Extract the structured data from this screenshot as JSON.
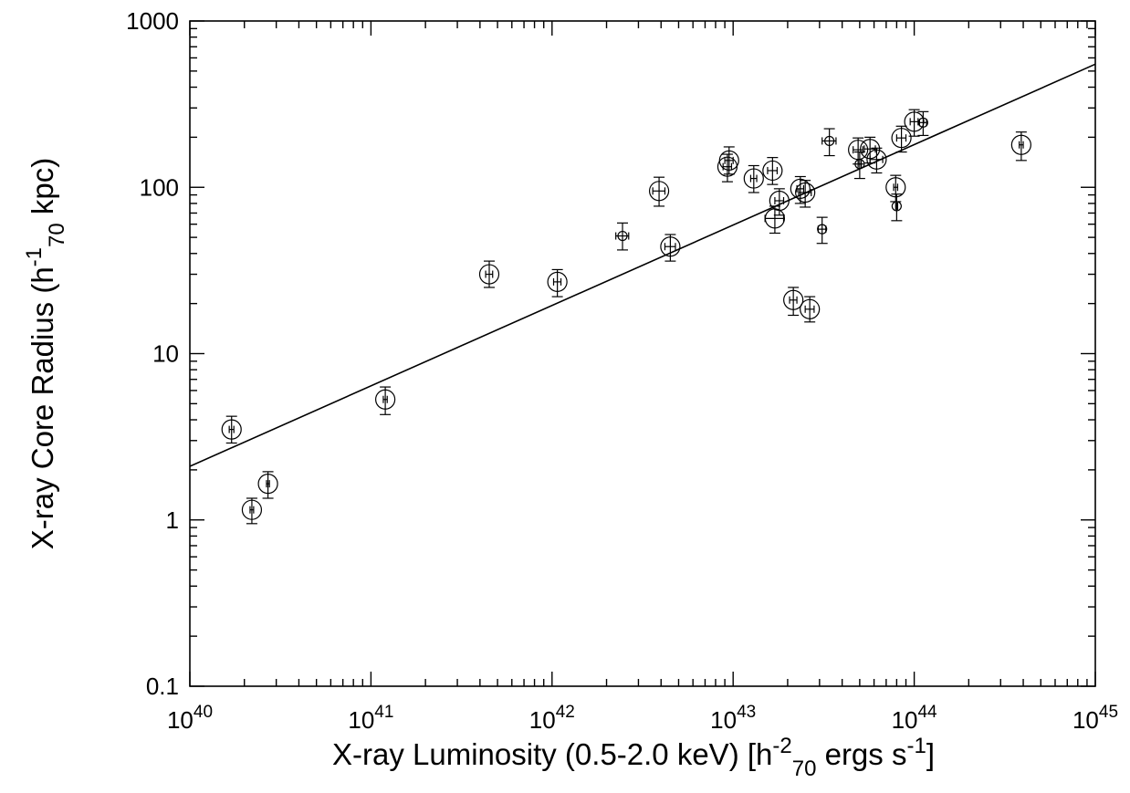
{
  "chart_data": {
    "type": "scatter",
    "xlabel": {
      "parts": [
        {
          "t": "X-ray Luminosity (0.5-2.0 keV) [h"
        },
        {
          "t": "-2",
          "sup": true
        },
        {
          "t": "70",
          "sub": true
        },
        {
          "t": " ergs s"
        },
        {
          "t": "-1",
          "sup": true
        },
        {
          "t": "]"
        }
      ]
    },
    "ylabel": {
      "parts": [
        {
          "t": "X-ray Core Radius (h"
        },
        {
          "t": "-1",
          "sup": true
        },
        {
          "t": "70",
          "sub": true
        },
        {
          "t": " kpc)"
        }
      ]
    },
    "x_scale": "log",
    "y_scale": "log",
    "xlim": [
      1e+40,
      1e+45
    ],
    "ylim": [
      0.1,
      1000
    ],
    "x_ticks": [
      {
        "value": 1e+40,
        "base": "10",
        "exp": "40"
      },
      {
        "value": 1e+41,
        "base": "10",
        "exp": "41"
      },
      {
        "value": 1e+42,
        "base": "10",
        "exp": "42"
      },
      {
        "value": 1e+43,
        "base": "10",
        "exp": "43"
      },
      {
        "value": 1e+44,
        "base": "10",
        "exp": "44"
      },
      {
        "value": 1e+45,
        "base": "10",
        "exp": "45"
      }
    ],
    "y_ticks": [
      {
        "value": 0.1,
        "label": "0.1"
      },
      {
        "value": 1,
        "label": "1"
      },
      {
        "value": 10,
        "label": "10"
      },
      {
        "value": 100,
        "label": "100"
      },
      {
        "value": 1000,
        "label": "1000"
      }
    ],
    "grid": false,
    "legend": "none",
    "marker_color": "#000000",
    "fit_line": {
      "x": [
        1e+40,
        1e+45
      ],
      "y": [
        2.1,
        550
      ]
    },
    "points": [
      {
        "x": 1.7e+40,
        "y": 3.5,
        "yerr": [
          0.6,
          0.7
        ],
        "xerr": [
          5e+38,
          5e+38
        ],
        "marker": "large"
      },
      {
        "x": 2.2e+40,
        "y": 1.15,
        "yerr": [
          0.2,
          0.2
        ],
        "xerr": [
          5e+38,
          5e+38
        ],
        "marker": "large"
      },
      {
        "x": 2.7e+40,
        "y": 1.65,
        "yerr": [
          0.3,
          0.3
        ],
        "xerr": [
          5e+38,
          5e+38
        ],
        "marker": "large"
      },
      {
        "x": 1.2e+41,
        "y": 5.3,
        "yerr": [
          1.0,
          1.0
        ],
        "xerr": [
          3e+39,
          3e+39
        ],
        "marker": "large"
      },
      {
        "x": 4.5e+41,
        "y": 30,
        "yerr": [
          5,
          6
        ],
        "xerr": [
          2e+40,
          2e+40
        ],
        "marker": "large"
      },
      {
        "x": 1.07e+42,
        "y": 27,
        "yerr": [
          5,
          5
        ],
        "xerr": [
          5e+40,
          5e+40
        ],
        "marker": "large"
      },
      {
        "x": 2.45e+42,
        "y": 51,
        "yerr": [
          9,
          10
        ],
        "xerr": [
          2e+41,
          2e+41
        ],
        "marker": "small"
      },
      {
        "x": 3.9e+42,
        "y": 95,
        "yerr": [
          18,
          20
        ],
        "xerr": [
          3e+41,
          3e+41
        ],
        "marker": "large"
      },
      {
        "x": 4.5e+42,
        "y": 44,
        "yerr": [
          8,
          8
        ],
        "xerr": [
          3e+41,
          3e+41
        ],
        "marker": "large"
      },
      {
        "x": 9.5e+42,
        "y": 145,
        "yerr": [
          25,
          30
        ],
        "xerr": [
          5e+41,
          5e+41
        ],
        "marker": "large"
      },
      {
        "x": 9.3e+42,
        "y": 133,
        "yerr": [
          25,
          25
        ],
        "xerr": [
          5e+41,
          5e+41
        ],
        "marker": "large"
      },
      {
        "x": 1.3e+43,
        "y": 113,
        "yerr": [
          20,
          22
        ],
        "xerr": [
          5e+41,
          5e+41
        ],
        "marker": "large"
      },
      {
        "x": 1.65e+43,
        "y": 126,
        "yerr": [
          22,
          25
        ],
        "xerr": [
          1e+42,
          1e+42
        ],
        "marker": "large"
      },
      {
        "x": 1.7e+43,
        "y": 65,
        "yerr": [
          12,
          12
        ],
        "xerr": [
          2e+42,
          2e+42
        ],
        "marker": "large"
      },
      {
        "x": 1.8e+43,
        "y": 83,
        "yerr": [
          15,
          15
        ],
        "xerr": [
          1e+42,
          1e+42
        ],
        "marker": "large"
      },
      {
        "x": 2.15e+43,
        "y": 21,
        "yerr": [
          4,
          4
        ],
        "xerr": [
          1e+42,
          1e+42
        ],
        "marker": "large"
      },
      {
        "x": 2.35e+43,
        "y": 98,
        "yerr": [
          18,
          18
        ],
        "xerr": [
          1e+42,
          1e+42
        ],
        "marker": "large"
      },
      {
        "x": 2.5e+43,
        "y": 93,
        "yerr": [
          17,
          17
        ],
        "xerr": [
          2e+42,
          2e+42
        ],
        "marker": "large"
      },
      {
        "x": 2.65e+43,
        "y": 18.5,
        "yerr": [
          3,
          3.5
        ],
        "xerr": [
          1.5e+42,
          1.5e+42
        ],
        "marker": "large"
      },
      {
        "x": 3.1e+43,
        "y": 56,
        "yerr": [
          10,
          10
        ],
        "xerr": [
          1.5e+42,
          1.5e+42
        ],
        "marker": "small"
      },
      {
        "x": 3.4e+43,
        "y": 190,
        "yerr": [
          35,
          35
        ],
        "xerr": [
          3e+42,
          3e+42
        ],
        "marker": "small"
      },
      {
        "x": 4.9e+43,
        "y": 168,
        "yerr": [
          30,
          30
        ],
        "xerr": [
          3e+42,
          3e+42
        ],
        "marker": "large"
      },
      {
        "x": 5e+43,
        "y": 138,
        "yerr": [
          25,
          25
        ],
        "xerr": [
          1e+42,
          1e+42
        ],
        "marker": "small"
      },
      {
        "x": 5.7e+43,
        "y": 170,
        "yerr": [
          30,
          30
        ],
        "xerr": [
          4e+42,
          4e+42
        ],
        "marker": "large"
      },
      {
        "x": 6.2e+43,
        "y": 147,
        "yerr": [
          25,
          25
        ],
        "xerr": [
          5e+42,
          5e+42
        ],
        "marker": "large"
      },
      {
        "x": 7.9e+43,
        "y": 100,
        "yerr": [
          18,
          18
        ],
        "xerr": [
          2e+42,
          2e+42
        ],
        "marker": "large"
      },
      {
        "x": 8e+43,
        "y": 77,
        "yerr": [
          14,
          14
        ],
        "xerr": [
          1e+42,
          1e+42
        ],
        "marker": "small"
      },
      {
        "x": 8.5e+43,
        "y": 198,
        "yerr": [
          35,
          35
        ],
        "xerr": [
          5e+42,
          5e+42
        ],
        "marker": "large"
      },
      {
        "x": 1e+44,
        "y": 248,
        "yerr": [
          45,
          45
        ],
        "xerr": [
          5e+42,
          5e+42
        ],
        "marker": "large"
      },
      {
        "x": 1.12e+44,
        "y": 245,
        "yerr": [
          40,
          40
        ],
        "xerr": [
          5e+42,
          5e+42
        ],
        "marker": "small"
      },
      {
        "x": 3.9e+44,
        "y": 180,
        "yerr": [
          35,
          35
        ],
        "xerr": [
          1e+43,
          1e+43
        ],
        "marker": "large"
      }
    ]
  }
}
